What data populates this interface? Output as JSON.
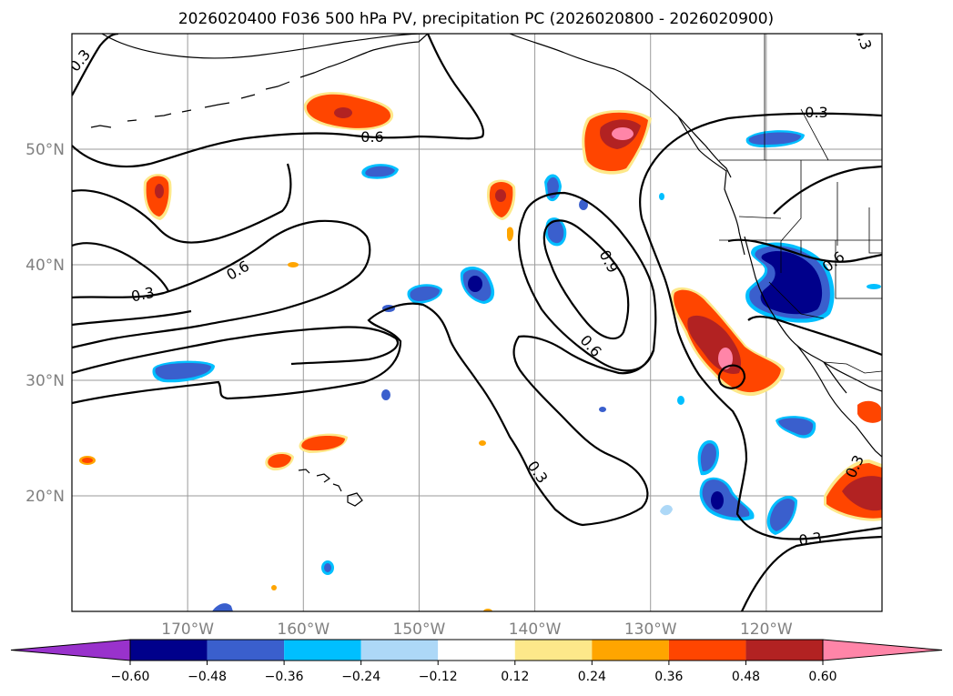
{
  "title": "2026020400 F036 500 hPa PV, precipitation PC (2026020800 - 2026020900)",
  "map": {
    "projection": "PlateCarree",
    "lon_range": [
      -180,
      -110
    ],
    "lat_range": [
      10,
      60
    ],
    "gridline_lons": [
      -170,
      -160,
      -150,
      -140,
      -130,
      -120
    ],
    "gridline_lats": [
      20,
      30,
      40,
      50
    ],
    "lat_labels": [
      "50°N",
      "40°N",
      "30°N",
      "20°N"
    ],
    "lon_labels": [
      "170°W",
      "160°W",
      "150°W",
      "140°W",
      "130°W",
      "120°W"
    ]
  },
  "contour_labels": [
    "0.3",
    "0.6",
    "0.9",
    "0.6",
    "0.3",
    "0.6",
    "0.3",
    "0.6",
    "0.3",
    "0.3",
    "0.3",
    "0.3"
  ],
  "colorbar": {
    "ticks": [
      "−0.60",
      "−0.48",
      "−0.36",
      "−0.24",
      "−0.12",
      "0.12",
      "0.24",
      "0.36",
      "0.48",
      "0.60"
    ],
    "colors": [
      "#9932cc",
      "#00008b",
      "#3a5fcd",
      "#00bfff",
      "#add8f7",
      "#ffffff",
      "#fde88a",
      "#ffa500",
      "#ff4500",
      "#b22222",
      "#ff85a8"
    ]
  },
  "chart_data": {
    "type": "heatmap",
    "title": "2026020400 F036 500 hPa PV, precipitation PC (2026020800 - 2026020900)",
    "variable_contours": "500 hPa PV",
    "contour_levels": [
      0.3,
      0.6,
      0.9
    ],
    "shaded_variable": "precipitation PC",
    "levels": [
      -0.6,
      -0.48,
      -0.36,
      -0.24,
      -0.12,
      0.12,
      0.24,
      0.36,
      0.48,
      0.6
    ],
    "xlim": [
      -180,
      -110
    ],
    "ylim": [
      10,
      60
    ]
  }
}
